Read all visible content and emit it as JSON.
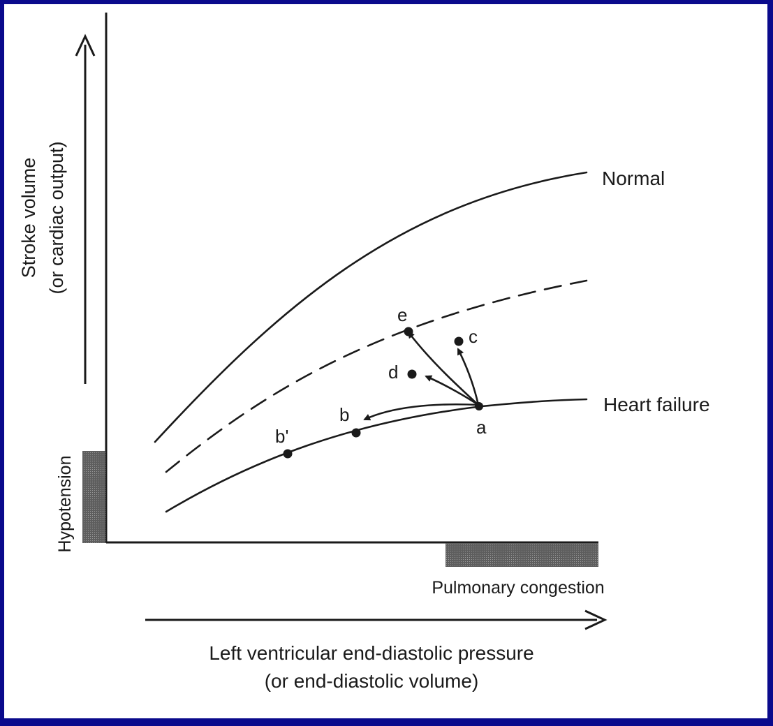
{
  "axes": {
    "y_label_line1": "Stroke volume",
    "y_label_line2": "(or cardiac output)",
    "x_label_line1": "Left ventricular end-diastolic pressure",
    "x_label_line2": "(or end-diastolic volume)"
  },
  "curves": {
    "normal": "Normal",
    "heart_failure": "Heart failure"
  },
  "zones": {
    "hypotension": "Hypotension",
    "pulmonary_congestion": "Pulmonary congestion"
  },
  "points": {
    "a": "a",
    "b": "b",
    "b_prime": "b'",
    "c": "c",
    "d": "d",
    "e": "e"
  },
  "colors": {
    "background": "#0a0a8c",
    "panel": "#ffffff",
    "ink": "#1a1a1a",
    "shade": "#6e6e6e"
  }
}
